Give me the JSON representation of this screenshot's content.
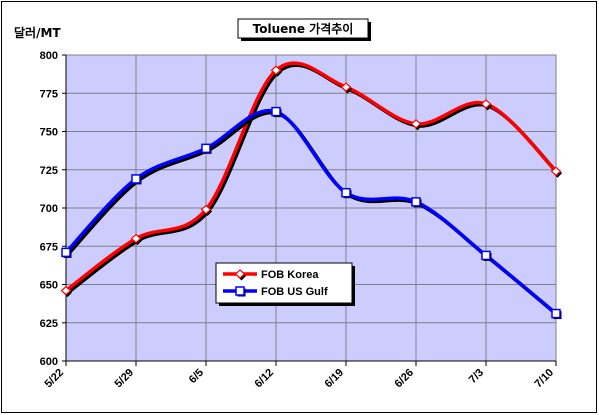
{
  "chart_data": {
    "type": "line",
    "title": "Toluene 가격추이",
    "ylabel": "달러/MT",
    "xlabel": "",
    "categories": [
      "5/22",
      "5/29",
      "6/5",
      "6/12",
      "6/19",
      "6/26",
      "7/3",
      "7/10"
    ],
    "ylim": [
      600,
      800
    ],
    "yticks": [
      600,
      625,
      650,
      675,
      700,
      725,
      750,
      775,
      800
    ],
    "grid": true,
    "legend_position": "center-left",
    "plot_background": "#ccccff",
    "series": [
      {
        "name": "FOB Korea",
        "color": "#ff0000",
        "marker": "diamond",
        "values": [
          646,
          680,
          699,
          790,
          779,
          755,
          768,
          724
        ]
      },
      {
        "name": "FOB US Gulf",
        "color": "#0000ff",
        "marker": "square",
        "values": [
          671,
          719,
          739,
          763,
          710,
          704,
          669,
          631
        ]
      }
    ]
  }
}
